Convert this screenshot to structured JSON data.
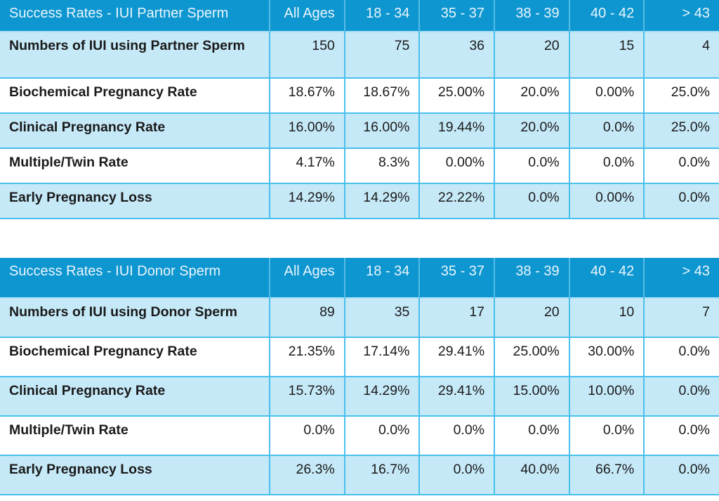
{
  "colors": {
    "header_bg": "#0d96d0",
    "header_text": "#eaf5fc",
    "band_row_bg": "#c6e9f8",
    "white_row_bg": "#ffffff",
    "cell_border": "#49c0ee",
    "body_text": "#1a1a1a"
  },
  "tables": [
    {
      "title": "Success Rates - IUI Partner Sperm",
      "age_columns": [
        "All Ages",
        "18 - 34",
        "35 - 37",
        "38 - 39",
        "40 - 42",
        "> 43"
      ],
      "rows": [
        {
          "label": "Numbers of IUI using Partner Sperm",
          "values": [
            "150",
            "75",
            "36",
            "20",
            "15",
            "4"
          ]
        },
        {
          "label": "Biochemical Pregnancy Rate",
          "values": [
            "18.67%",
            "18.67%",
            "25.00%",
            "20.0%",
            "0.00%",
            "25.0%"
          ]
        },
        {
          "label": "Clinical Pregnancy Rate",
          "values": [
            "16.00%",
            "16.00%",
            "19.44%",
            "20.0%",
            "0.0%",
            "25.0%"
          ]
        },
        {
          "label": "Multiple/Twin Rate",
          "values": [
            "4.17%",
            "8.3%",
            "0.00%",
            "0.0%",
            "0.0%",
            "0.0%"
          ]
        },
        {
          "label": "Early Pregnancy Loss",
          "values": [
            "14.29%",
            "14.29%",
            "22.22%",
            "0.0%",
            "0.00%",
            "0.0%"
          ]
        }
      ]
    },
    {
      "title": "Success Rates - IUI Donor Sperm",
      "age_columns": [
        "All Ages",
        "18 - 34",
        "35 - 37",
        "38 - 39",
        "40 - 42",
        "> 43"
      ],
      "rows": [
        {
          "label": "Numbers of IUI using Donor Sperm",
          "values": [
            "89",
            "35",
            "17",
            "20",
            "10",
            "7"
          ]
        },
        {
          "label": "Biochemical Pregnancy Rate",
          "values": [
            "21.35%",
            "17.14%",
            "29.41%",
            "25.00%",
            "30.00%",
            "0.0%"
          ]
        },
        {
          "label": "Clinical Pregnancy Rate",
          "values": [
            "15.73%",
            "14.29%",
            "29.41%",
            "15.00%",
            "10.00%",
            "0.0%"
          ]
        },
        {
          "label": "Multiple/Twin Rate",
          "values": [
            "0.0%",
            "0.0%",
            "0.0%",
            "0.0%",
            "0.0%",
            "0.0%"
          ]
        },
        {
          "label": "Early Pregnancy Loss",
          "values": [
            "26.3%",
            "16.7%",
            "0.0%",
            "40.0%",
            "66.7%",
            "0.0%"
          ]
        }
      ]
    }
  ]
}
